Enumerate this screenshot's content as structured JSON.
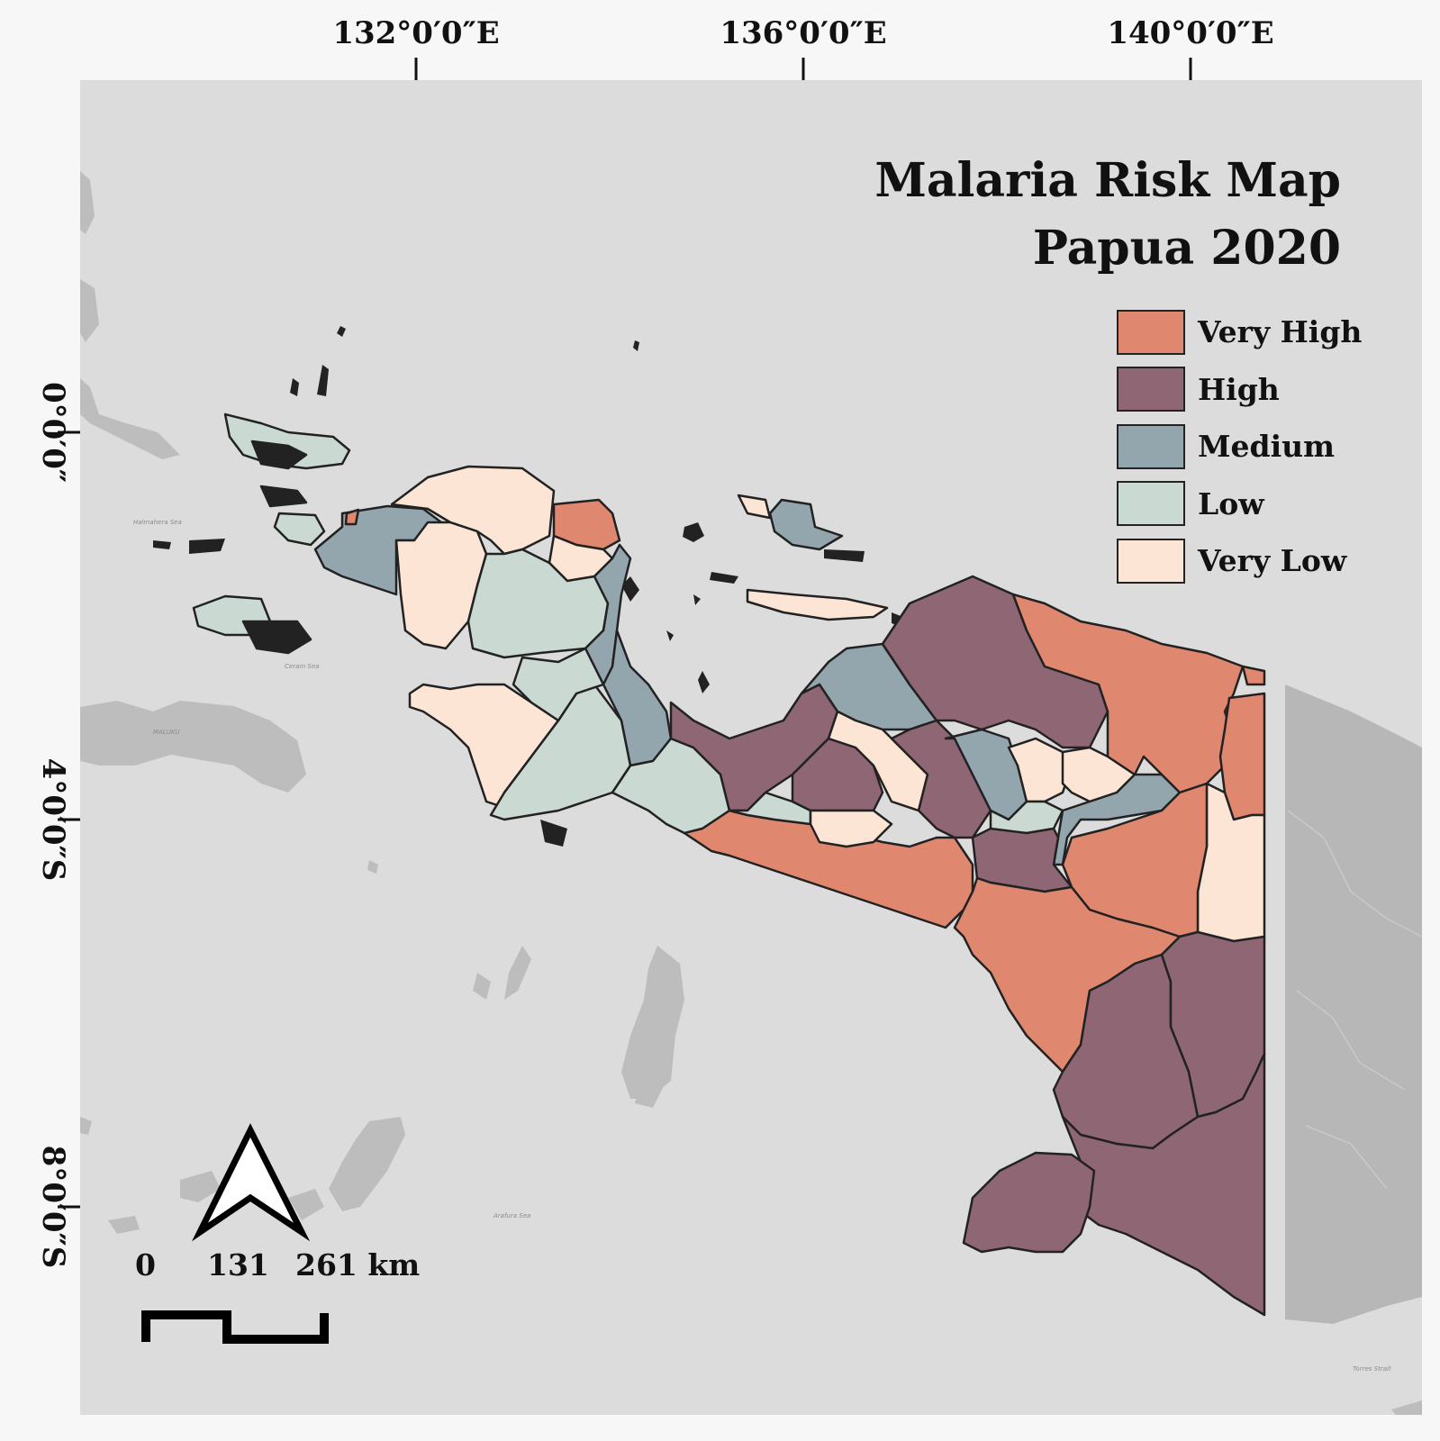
{
  "map": {
    "title_line1": "Malaria Risk Map",
    "title_line2": "Papua 2020",
    "graticule": {
      "longitude_labels": [
        "132°0′0″E",
        "136°0′0″E",
        "140°0′0″E"
      ],
      "latitude_labels": [
        "0°0′0″",
        "4°0′0″S",
        "8°0′0″S"
      ]
    },
    "legend": {
      "items": [
        {
          "label": "Very High",
          "color": "#df876f"
        },
        {
          "label": "High",
          "color": "#8f6674"
        },
        {
          "label": "Medium",
          "color": "#93a6ae"
        },
        {
          "label": "Low",
          "color": "#cad9d1"
        },
        {
          "label": "Very Low",
          "color": "#fde5d6"
        }
      ]
    },
    "scale_bar": {
      "labels": [
        "0",
        "131",
        "261 km"
      ]
    },
    "north_arrow": {
      "icon": "north-arrow-icon"
    },
    "sea_labels": [
      "Halmahera Sea",
      "Ceram Sea",
      "Arafura Sea",
      "Torres Strait",
      "MALUKU"
    ],
    "colors": {
      "water": "#dcdcdc",
      "neighbor_land": "#bdbdbd",
      "png_land": "#b7b7b7",
      "outline": "#222222"
    }
  }
}
